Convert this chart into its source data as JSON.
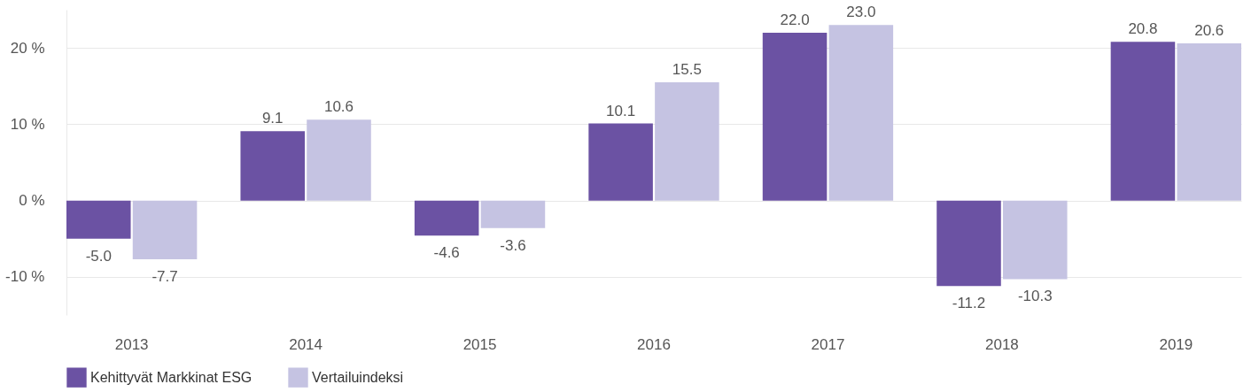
{
  "chart_data": {
    "type": "bar",
    "categories": [
      "2013",
      "2014",
      "2015",
      "2016",
      "2017",
      "2018",
      "2019"
    ],
    "series": [
      {
        "name": "Kehittyvät Markkinat ESG",
        "color": "#6b52a3",
        "values": [
          -5.0,
          9.1,
          -4.6,
          10.1,
          22.0,
          -11.2,
          20.8
        ],
        "value_labels": [
          "-5.0",
          "9.1",
          "-4.6",
          "10.1",
          "22.0",
          "-11.2",
          "20.8"
        ]
      },
      {
        "name": "Vertailuindeksi",
        "color": "#c5c3e2",
        "values": [
          -7.7,
          10.6,
          -3.6,
          15.5,
          23.0,
          -10.3,
          20.6
        ],
        "value_labels": [
          "-7.7",
          "10.6",
          "-3.6",
          "15.5",
          "23.0",
          "-10.3",
          "20.6"
        ]
      }
    ],
    "yticks": [
      {
        "value": -10,
        "label": "-10 %"
      },
      {
        "value": 0,
        "label": "0 %"
      },
      {
        "value": 10,
        "label": "10 %"
      },
      {
        "value": 20,
        "label": "20 %"
      }
    ],
    "ylim": [
      -15,
      25
    ],
    "grid": "y",
    "legend": "bottom left"
  }
}
